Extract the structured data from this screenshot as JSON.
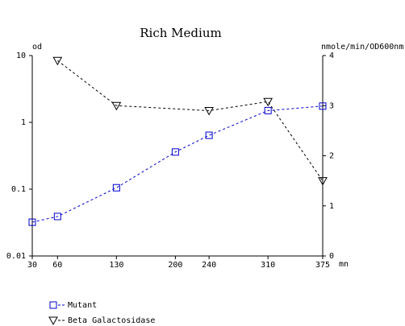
{
  "chart_data": {
    "type": "line",
    "title": "Rich Medium",
    "y_label": "od",
    "y2_label": "nmole/min/OD600nm",
    "x_label": "mn",
    "xlim": [
      30,
      375
    ],
    "xticks": [
      30,
      60,
      130,
      200,
      240,
      310,
      375
    ],
    "ylim": [
      0.01,
      10
    ],
    "yticks": [
      10,
      1,
      0.1,
      0.01
    ],
    "y_log": true,
    "y2lim": [
      0,
      4
    ],
    "y2ticks": [
      0,
      1,
      2,
      3,
      4
    ],
    "series": [
      {
        "name": "Mutant",
        "color": "#0000cc",
        "marker": "square",
        "x": [
          30,
          60,
          130,
          200,
          240,
          310,
          375
        ],
        "values": [
          0.032,
          0.039,
          0.105,
          0.36,
          0.64,
          1.5,
          1.75
        ]
      },
      {
        "name": "Beta Galactosidase",
        "color": "#000000",
        "marker": "triangle-down",
        "axis": "y2",
        "x": [
          60,
          130,
          240,
          310,
          375
        ],
        "values": [
          3.9,
          3.0,
          2.9,
          3.08,
          1.5
        ]
      }
    ]
  }
}
